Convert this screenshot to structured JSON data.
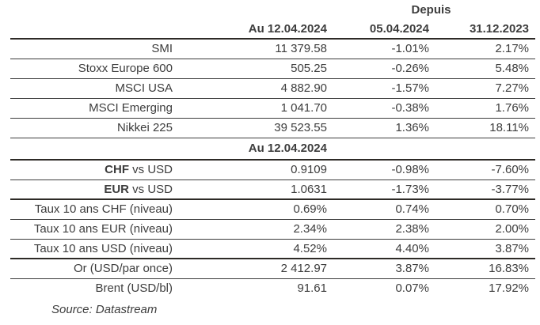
{
  "colors": {
    "background": "#ffffff",
    "text": "#3d3d3d",
    "thin_rule": "#3c3c3c",
    "thick_rule": "#2d2a26"
  },
  "header": {
    "depuis": "Depuis",
    "col_date_main": "Au 12.04.2024",
    "col_date_prev": "05.04.2024",
    "col_date_ytd": "31.12.2023"
  },
  "sections": {
    "indices": {
      "rows": [
        {
          "label": "SMI",
          "value": "11 379.58",
          "chg_week": "-1.01%",
          "chg_ytd": "2.17%"
        },
        {
          "label": "Stoxx Europe 600",
          "value": "505.25",
          "chg_week": "-0.26%",
          "chg_ytd": "5.48%"
        },
        {
          "label": "MSCI USA",
          "value": "4 882.90",
          "chg_week": "-1.57%",
          "chg_ytd": "7.27%"
        },
        {
          "label": "MSCI Emerging",
          "value": "1 041.70",
          "chg_week": "-0.38%",
          "chg_ytd": "1.76%"
        },
        {
          "label": "Nikkei 225",
          "value": "39 523.55",
          "chg_week": "1.36%",
          "chg_ytd": "18.11%"
        }
      ]
    },
    "mid_header": "Au 12.04.2024",
    "currencies": {
      "rows": [
        {
          "label_bold": "CHF",
          "label_rest": " vs USD",
          "value": "0.9109",
          "chg_week": "-0.98%",
          "chg_ytd": "-7.60%"
        },
        {
          "label_bold": "EUR",
          "label_rest": " vs USD",
          "value": "1.0631",
          "chg_week": "-1.73%",
          "chg_ytd": "-3.77%"
        }
      ]
    },
    "rates": {
      "rows": [
        {
          "label": "Taux 10 ans CHF (niveau)",
          "value": "0.69%",
          "chg_week": "0.74%",
          "chg_ytd": "0.70%"
        },
        {
          "label": "Taux 10 ans EUR (niveau)",
          "value": "2.34%",
          "chg_week": "2.38%",
          "chg_ytd": "2.00%"
        },
        {
          "label": "Taux 10 ans USD (niveau)",
          "value": "4.52%",
          "chg_week": "4.40%",
          "chg_ytd": "3.87%"
        }
      ]
    },
    "commodities": {
      "rows": [
        {
          "label": "Or (USD/par once)",
          "value": "2 412.97",
          "chg_week": "3.87%",
          "chg_ytd": "16.83%"
        },
        {
          "label": "Brent (USD/bl)",
          "value": "91.61",
          "chg_week": "0.07%",
          "chg_ytd": "17.92%"
        }
      ]
    }
  },
  "footer": {
    "source": "Source: Datastream"
  }
}
